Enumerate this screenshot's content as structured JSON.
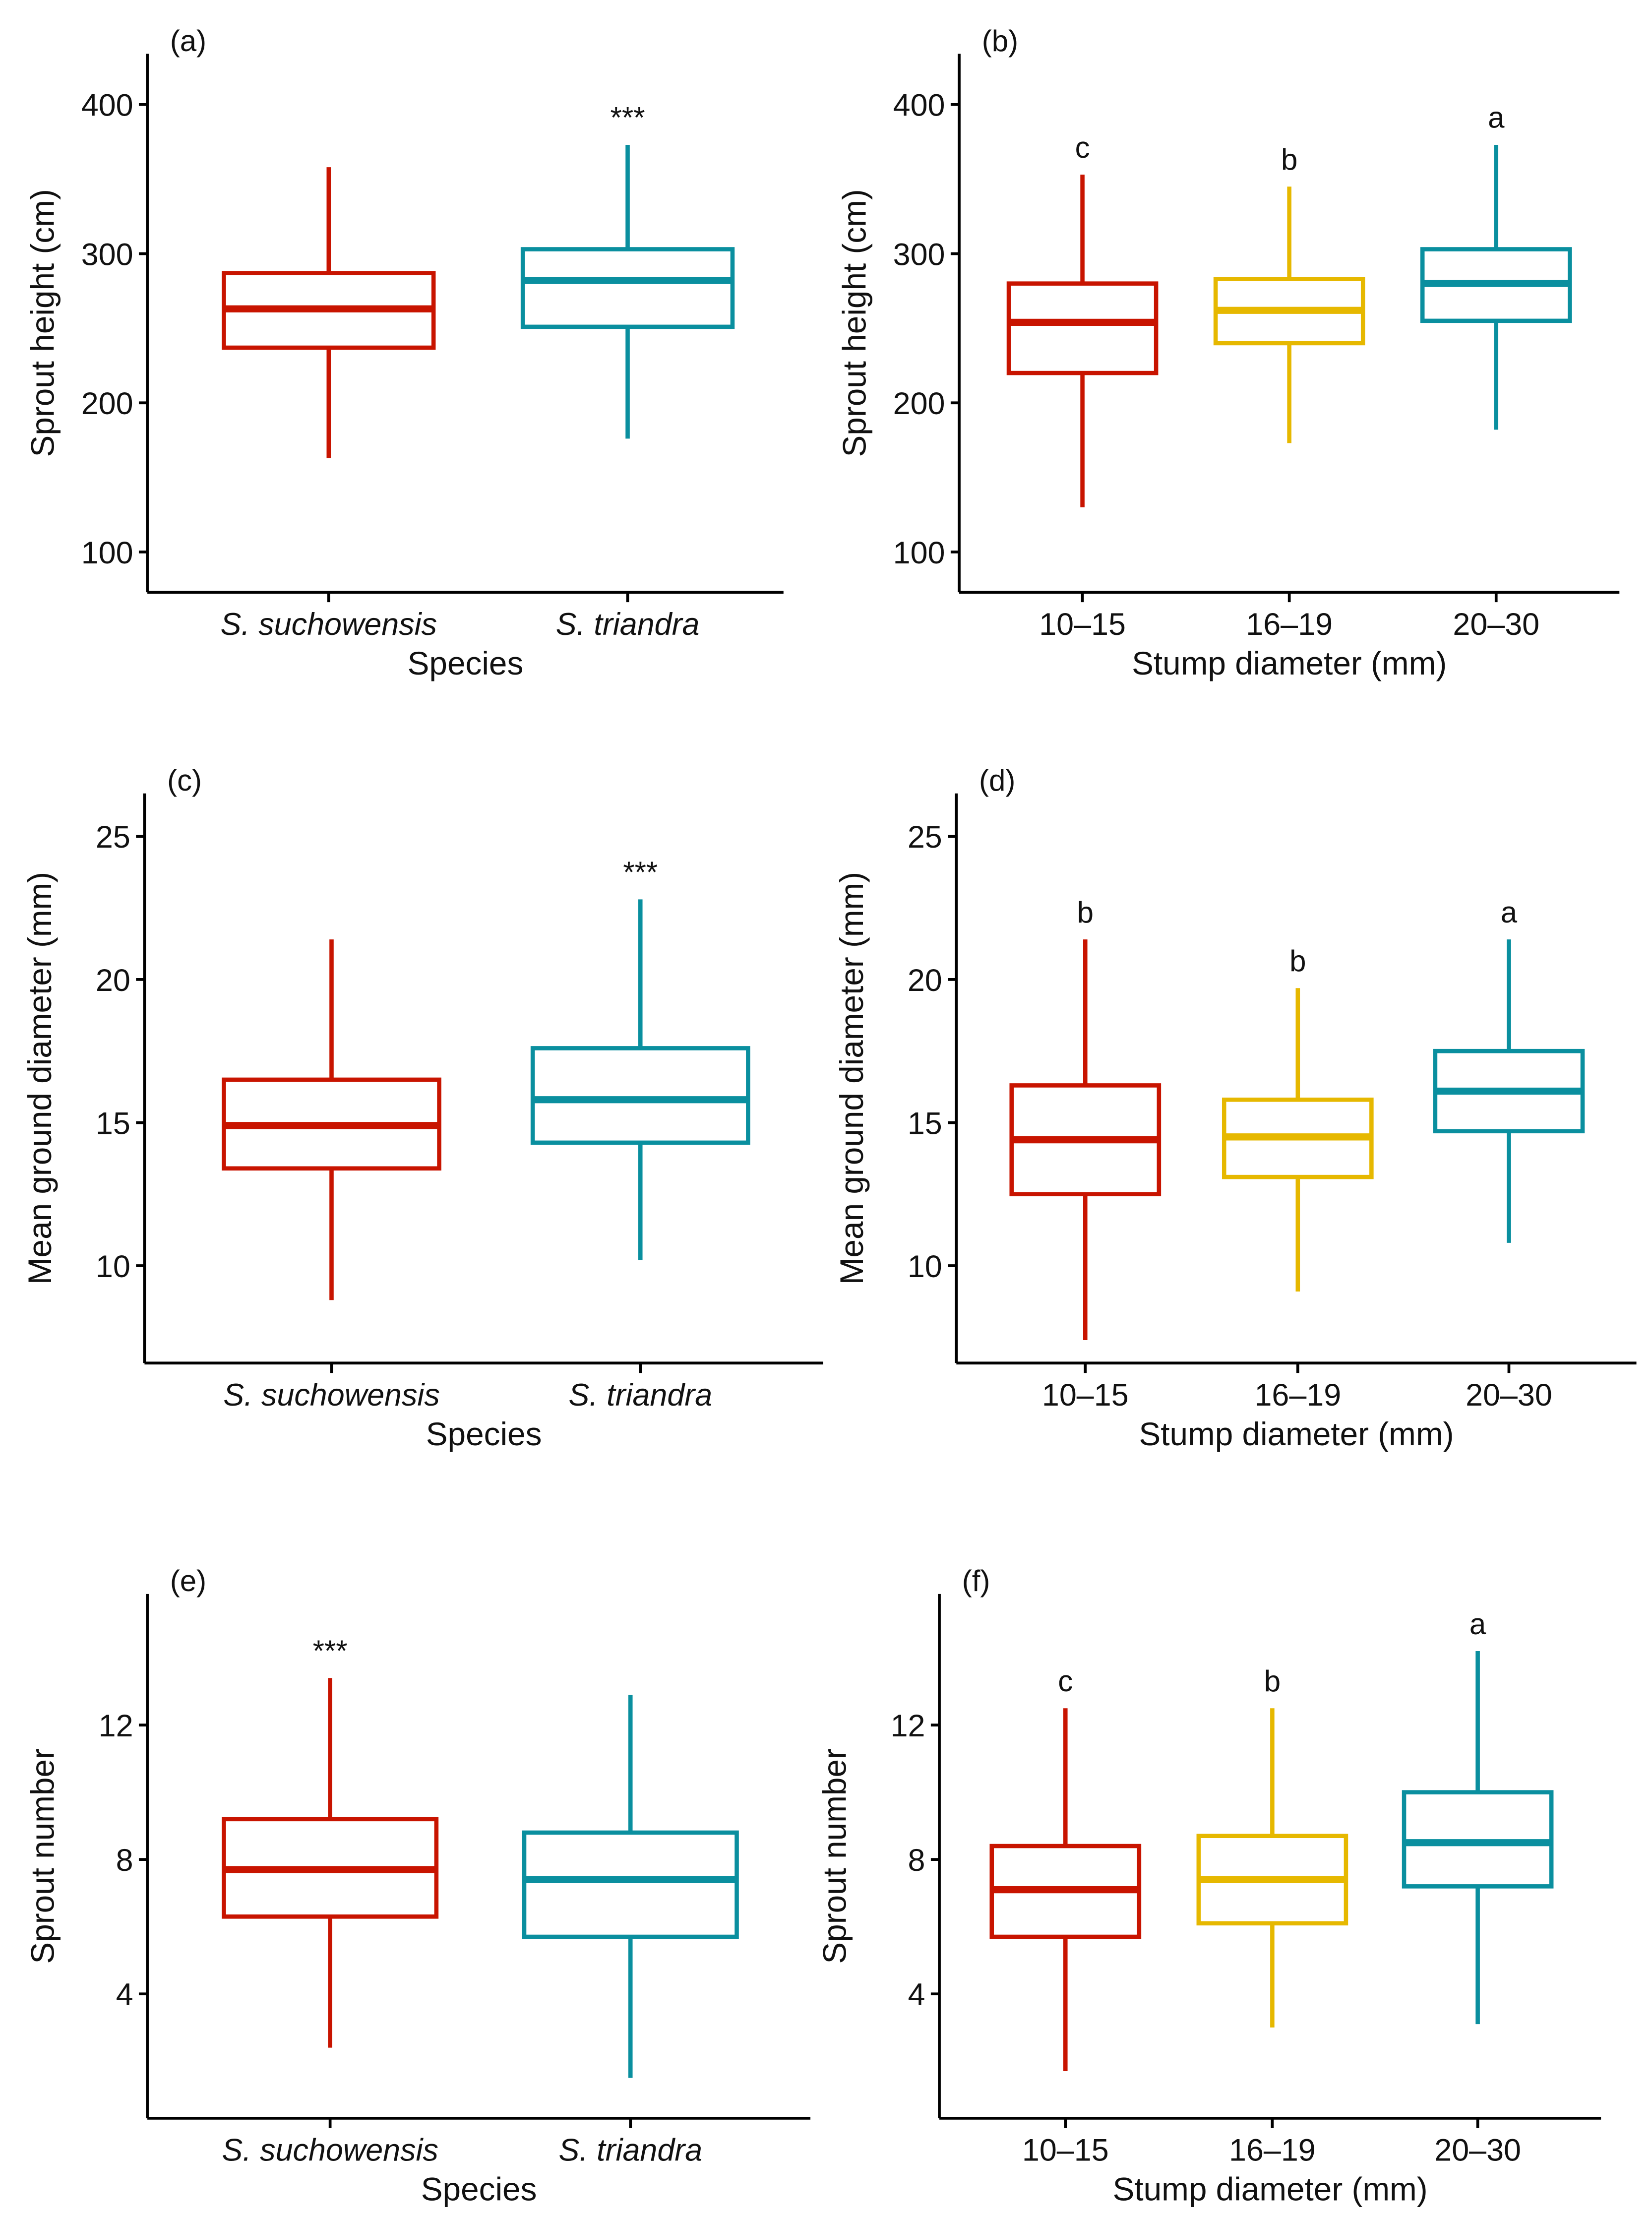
{
  "colors": {
    "red": "#C81400",
    "yellow": "#E6B800",
    "teal": "#0A8F9F",
    "axis": "#000000"
  },
  "chart_data": [
    {
      "type": "box",
      "panel_label": "(a)",
      "xlabel": "Species",
      "ylabel": "Sprout height (cm)",
      "ylim": [
        73,
        434
      ],
      "yticks": [
        100,
        200,
        300,
        400
      ],
      "italic_categories": true,
      "categories": [
        "S. suchowensis",
        "S. triandra"
      ],
      "series": [
        {
          "name": "S. suchowensis",
          "color": "red",
          "whisker_low": 163,
          "q1": 237,
          "median": 263,
          "q3": 287,
          "whisker_high": 358,
          "annotation": ""
        },
        {
          "name": "S. triandra",
          "color": "teal",
          "whisker_low": 176,
          "q1": 251,
          "median": 282,
          "q3": 303,
          "whisker_high": 373,
          "annotation": "***"
        }
      ]
    },
    {
      "type": "box",
      "panel_label": "(b)",
      "xlabel": "Stump diameter (mm)",
      "ylabel": "Sprout height (cm)",
      "ylim": [
        73,
        434
      ],
      "yticks": [
        100,
        200,
        300,
        400
      ],
      "italic_categories": false,
      "categories": [
        "10–15",
        "16–19",
        "20–30"
      ],
      "series": [
        {
          "name": "10–15",
          "color": "red",
          "whisker_low": 130,
          "q1": 220,
          "median": 254,
          "q3": 280,
          "whisker_high": 353,
          "annotation": "c"
        },
        {
          "name": "16–19",
          "color": "yellow",
          "whisker_low": 173,
          "q1": 240,
          "median": 262,
          "q3": 283,
          "whisker_high": 345,
          "annotation": "b"
        },
        {
          "name": "20–30",
          "color": "teal",
          "whisker_low": 182,
          "q1": 255,
          "median": 280,
          "q3": 303,
          "whisker_high": 373,
          "annotation": "a"
        }
      ]
    },
    {
      "type": "box",
      "panel_label": "(c)",
      "xlabel": "Species",
      "ylabel": "Mean ground diameter (mm)",
      "ylim": [
        6.6,
        26.5
      ],
      "yticks": [
        10,
        15,
        20,
        25
      ],
      "italic_categories": true,
      "categories": [
        "S. suchowensis",
        "S. triandra"
      ],
      "series": [
        {
          "name": "S. suchowensis",
          "color": "red",
          "whisker_low": 8.8,
          "q1": 13.4,
          "median": 14.9,
          "q3": 16.5,
          "whisker_high": 21.4,
          "annotation": ""
        },
        {
          "name": "S. triandra",
          "color": "teal",
          "whisker_low": 10.2,
          "q1": 14.3,
          "median": 15.8,
          "q3": 17.6,
          "whisker_high": 22.8,
          "annotation": "***"
        }
      ]
    },
    {
      "type": "box",
      "panel_label": "(d)",
      "xlabel": "Stump diameter (mm)",
      "ylabel": "Mean ground diameter (mm)",
      "ylim": [
        6.6,
        26.5
      ],
      "yticks": [
        10,
        15,
        20,
        25
      ],
      "italic_categories": false,
      "categories": [
        "10–15",
        "16–19",
        "20–30"
      ],
      "series": [
        {
          "name": "10–15",
          "color": "red",
          "whisker_low": 7.4,
          "q1": 12.5,
          "median": 14.4,
          "q3": 16.3,
          "whisker_high": 21.4,
          "annotation": "b"
        },
        {
          "name": "16–19",
          "color": "yellow",
          "whisker_low": 9.1,
          "q1": 13.1,
          "median": 14.5,
          "q3": 15.8,
          "whisker_high": 19.7,
          "annotation": "b"
        },
        {
          "name": "20–30",
          "color": "teal",
          "whisker_low": 10.8,
          "q1": 14.7,
          "median": 16.1,
          "q3": 17.5,
          "whisker_high": 21.4,
          "annotation": "a"
        }
      ]
    },
    {
      "type": "box",
      "panel_label": "(e)",
      "xlabel": "Species",
      "ylabel": "Sprout number",
      "ylim": [
        0.3,
        15.9
      ],
      "yticks": [
        4,
        8,
        12
      ],
      "italic_categories": true,
      "categories": [
        "S. suchowensis",
        "S. triandra"
      ],
      "series": [
        {
          "name": "S. suchowensis",
          "color": "red",
          "whisker_low": 2.4,
          "q1": 6.3,
          "median": 7.7,
          "q3": 9.2,
          "whisker_high": 13.4,
          "annotation": "***"
        },
        {
          "name": "S. triandra",
          "color": "teal",
          "whisker_low": 1.5,
          "q1": 5.7,
          "median": 7.4,
          "q3": 8.8,
          "whisker_high": 12.9,
          "annotation": ""
        }
      ]
    },
    {
      "type": "box",
      "panel_label": "(f)",
      "xlabel": "Stump diameter (mm)",
      "ylabel": "Sprout number",
      "ylim": [
        0.3,
        15.9
      ],
      "yticks": [
        4,
        8,
        12
      ],
      "italic_categories": false,
      "categories": [
        "10–15",
        "16–19",
        "20–30"
      ],
      "series": [
        {
          "name": "10–15",
          "color": "red",
          "whisker_low": 1.7,
          "q1": 5.7,
          "median": 7.1,
          "q3": 8.4,
          "whisker_high": 12.5,
          "annotation": "c"
        },
        {
          "name": "16–19",
          "color": "yellow",
          "whisker_low": 3.0,
          "q1": 6.1,
          "median": 7.4,
          "q3": 8.7,
          "whisker_high": 12.5,
          "annotation": "b"
        },
        {
          "name": "20–30",
          "color": "teal",
          "whisker_low": 3.1,
          "q1": 7.2,
          "median": 8.5,
          "q3": 10.0,
          "whisker_high": 14.2,
          "annotation": "a"
        }
      ]
    }
  ]
}
